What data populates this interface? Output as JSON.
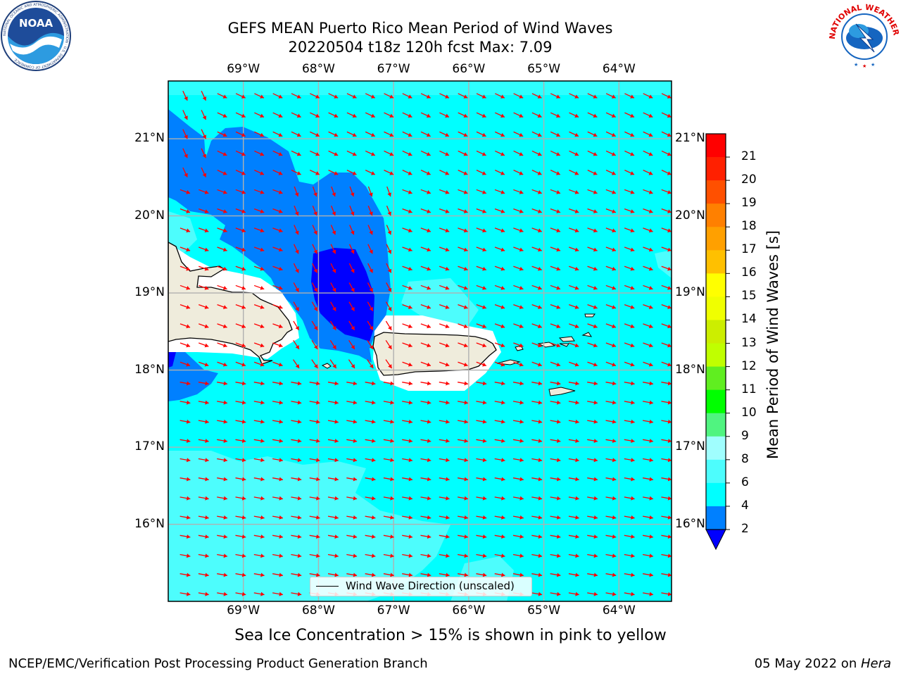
{
  "header": {
    "title_line1": "GEFS MEAN Puerto Rico Mean Period of Wind Waves",
    "title_line2": "20220504 t18z 120h fcst   Max: 7.09"
  },
  "logos": {
    "left": {
      "name": "noaa-logo",
      "text": "NOAA",
      "ring": "NATIONAL OCEANIC AND ATMOSPHERIC ADMINISTRATION · U.S. DEPARTMENT OF COMMERCE"
    },
    "right": {
      "name": "nws-logo",
      "ring": "NATIONAL WEATHER SERVICE"
    }
  },
  "map": {
    "lon_range": [
      -70.0,
      -63.3
    ],
    "lat_range": [
      15.0,
      21.75
    ],
    "lon_ticks": [
      {
        "value": -69,
        "label": "69°W"
      },
      {
        "value": -68,
        "label": "68°W"
      },
      {
        "value": -67,
        "label": "67°W"
      },
      {
        "value": -66,
        "label": "66°W"
      },
      {
        "value": -65,
        "label": "65°W"
      },
      {
        "value": -64,
        "label": "64°W"
      }
    ],
    "lat_ticks": [
      {
        "value": 16,
        "label": "16°N"
      },
      {
        "value": 17,
        "label": "17°N"
      },
      {
        "value": 18,
        "label": "18°N"
      },
      {
        "value": 19,
        "label": "19°N"
      },
      {
        "value": 20,
        "label": "20°N"
      },
      {
        "value": 21,
        "label": "21°N"
      }
    ],
    "grid": true,
    "vector_color": "#ff0000",
    "land_color": "#efecdc",
    "legend_text": "Wind Wave Direction (unscaled)",
    "legend_position": "bottom-center"
  },
  "colorbar": {
    "label": "Mean Period of Wind Waves [s]",
    "bins": [
      {
        "low": 2,
        "high": 4,
        "color": "#0080ff"
      },
      {
        "low": 4,
        "high": 6,
        "color": "#00ffff"
      },
      {
        "low": 6,
        "high": 8,
        "color": "#4dfdfd"
      },
      {
        "low": 8,
        "high": 9,
        "color": "#a0fefe"
      },
      {
        "low": 9,
        "high": 10,
        "color": "#50f480"
      },
      {
        "low": 10,
        "high": 11,
        "color": "#00ff00"
      },
      {
        "low": 11,
        "high": 12,
        "color": "#60ee20"
      },
      {
        "low": 12,
        "high": 13,
        "color": "#c0ff00"
      },
      {
        "low": 13,
        "high": 14,
        "color": "#ccee00"
      },
      {
        "low": 14,
        "high": 15,
        "color": "#f0ff00"
      },
      {
        "low": 15,
        "high": 16,
        "color": "#ffff00"
      },
      {
        "low": 16,
        "high": 17,
        "color": "#ffc000"
      },
      {
        "low": 17,
        "high": 18,
        "color": "#ffa000"
      },
      {
        "low": 18,
        "high": 19,
        "color": "#ff8000"
      },
      {
        "low": 19,
        "high": 20,
        "color": "#ff5000"
      },
      {
        "low": 20,
        "high": 21,
        "color": "#ff2000"
      },
      {
        "low": 21,
        "high": 22,
        "color": "#ff0000"
      }
    ],
    "under_color": "#0000ff",
    "tick_labels": [
      "2",
      "4",
      "6",
      "8",
      "9",
      "10",
      "11",
      "12",
      "13",
      "14",
      "15",
      "16",
      "17",
      "18",
      "19",
      "20",
      "21"
    ]
  },
  "caption": "Sea Ice Concentration > 15% is shown in pink to yellow",
  "footer": {
    "left": "NCEP/EMC/Verification Post Processing Product Generation Branch",
    "right_prefix": "05 May 2022 on ",
    "right_italic": "Hera"
  }
}
